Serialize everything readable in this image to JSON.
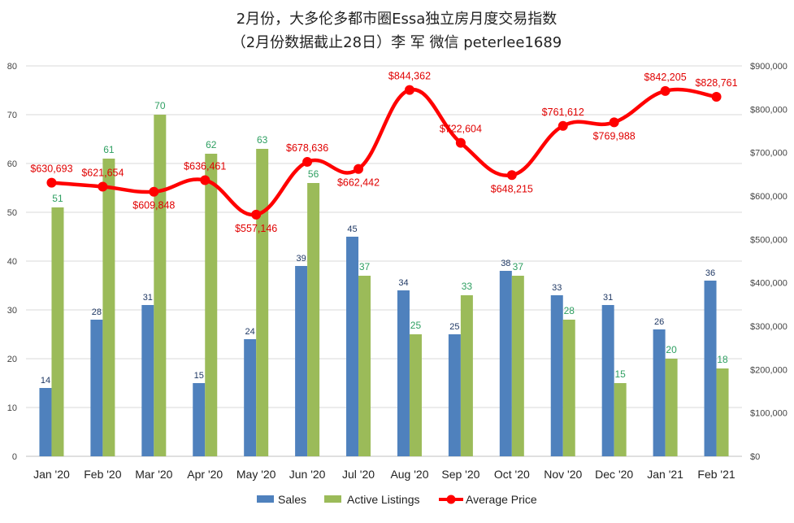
{
  "chart_data": {
    "type": "bar",
    "title": "2月份，大多伦多都市圈Essa独立房月度交易指数",
    "subtitle": "（2月份数据截止28日）李 军  微信  peterlee1689",
    "categories": [
      "Jan '20",
      "Feb '20",
      "Mar '20",
      "Apr '20",
      "May '20",
      "Jun '20",
      "Jul '20",
      "Aug '20",
      "Sep '20",
      "Oct '20",
      "Nov '20",
      "Dec '20",
      "Jan '21",
      "Feb '21"
    ],
    "series": [
      {
        "name": "Sales",
        "type": "bar",
        "axis": "left",
        "color": "#4f81bd",
        "values": [
          14,
          28,
          31,
          15,
          24,
          39,
          45,
          34,
          25,
          38,
          33,
          31,
          26,
          36
        ]
      },
      {
        "name": "Active Listings",
        "type": "bar",
        "axis": "left",
        "color": "#9bbb59",
        "values": [
          51,
          61,
          70,
          62,
          63,
          56,
          37,
          25,
          33,
          37,
          28,
          15,
          20,
          18
        ]
      },
      {
        "name": "Average Price",
        "type": "line",
        "axis": "right",
        "color": "#ff0000",
        "values": [
          630693,
          621654,
          609848,
          636461,
          557146,
          678636,
          662442,
          844362,
          722604,
          648215,
          761612,
          769988,
          842205,
          828761
        ],
        "labels": [
          "$630,693",
          "$621,654",
          "$609,848",
          "$636,461",
          "$557,146",
          "$678,636",
          "$662,442",
          "$844,362",
          "$722,604",
          "$648,215",
          "$761,612",
          "$769,988",
          "$842,205",
          "$828,761"
        ]
      }
    ],
    "ylim": [
      0,
      80
    ],
    "yticks": [
      "0",
      "10",
      "20",
      "30",
      "40",
      "50",
      "60",
      "70",
      "80"
    ],
    "y2lim": [
      0,
      900000
    ],
    "y2ticks": [
      "$0",
      "$100,000",
      "$200,000",
      "$300,000",
      "$400,000",
      "$500,000",
      "$600,000",
      "$700,000",
      "$800,000",
      "$900,000"
    ],
    "grid": true,
    "legend": "bottom"
  }
}
